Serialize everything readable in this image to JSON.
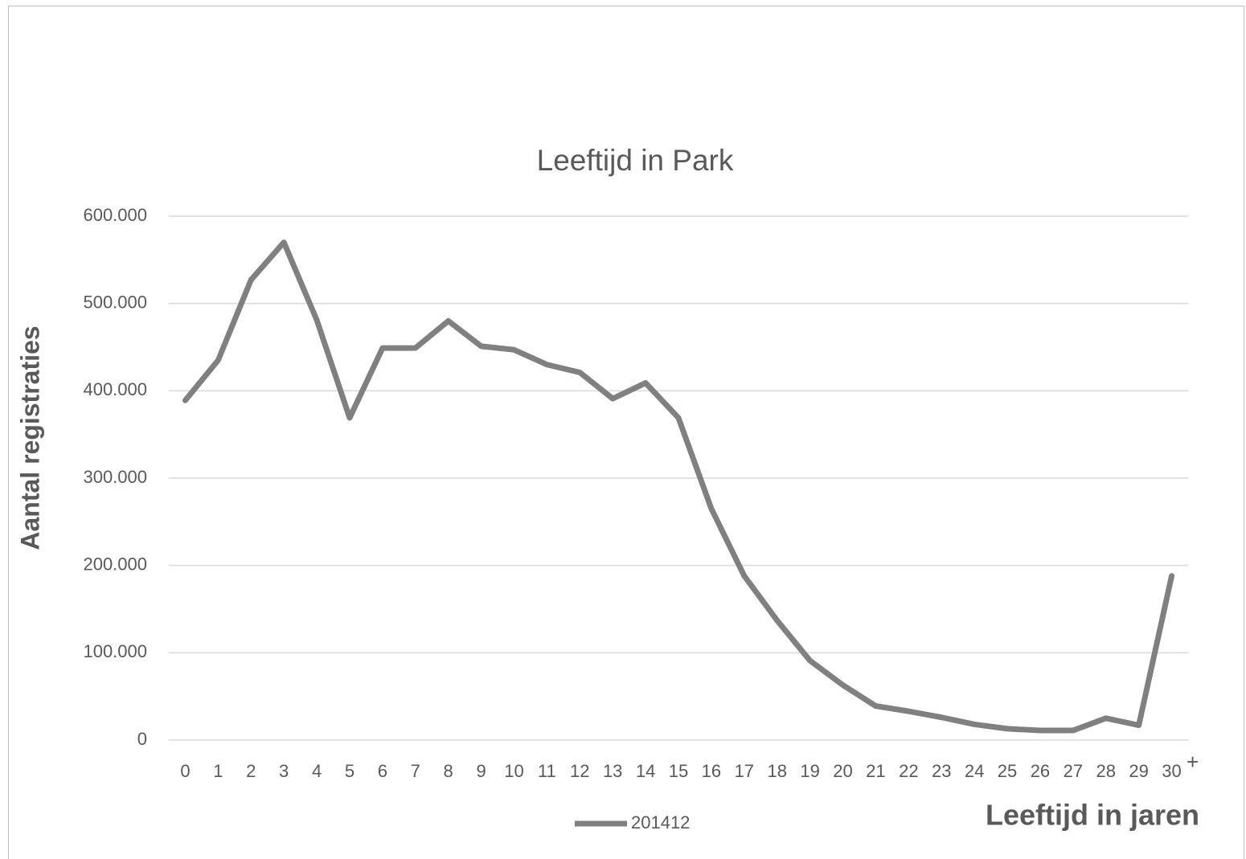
{
  "chart_data": {
    "type": "line",
    "title": "Leeftijd in Park",
    "x_label": "Leeftijd in jaren",
    "y_label": "Aantal registraties",
    "annotation": "+",
    "categories": [
      "0",
      "1",
      "2",
      "3",
      "4",
      "5",
      "6",
      "7",
      "8",
      "9",
      "10",
      "11",
      "12",
      "13",
      "14",
      "15",
      "16",
      "17",
      "18",
      "19",
      "20",
      "21",
      "22",
      "23",
      "24",
      "25",
      "26",
      "27",
      "28",
      "29",
      "30"
    ],
    "series": [
      {
        "name": "201412",
        "color": "#808080",
        "values": [
          389000,
          435000,
          527000,
          570000,
          481000,
          369000,
          449000,
          449000,
          480000,
          451000,
          447000,
          430000,
          421000,
          391000,
          409000,
          369000,
          265000,
          188000,
          137000,
          91000,
          63000,
          39000,
          33000,
          26000,
          18000,
          13000,
          11000,
          11000,
          25000,
          17000,
          188000
        ]
      }
    ],
    "ylim": [
      0,
      600000
    ],
    "yticks": [
      0,
      {
        "value": 100000,
        "label": "100.000"
      },
      {
        "value": 200000,
        "label": "200.000"
      },
      {
        "value": 300000,
        "label": "300.000"
      },
      {
        "value": 400000,
        "label": "400.000"
      },
      {
        "value": 500000,
        "label": "500.000"
      },
      {
        "value": 600000,
        "label": "600.000"
      }
    ],
    "grid": true,
    "legend": "bottom"
  }
}
